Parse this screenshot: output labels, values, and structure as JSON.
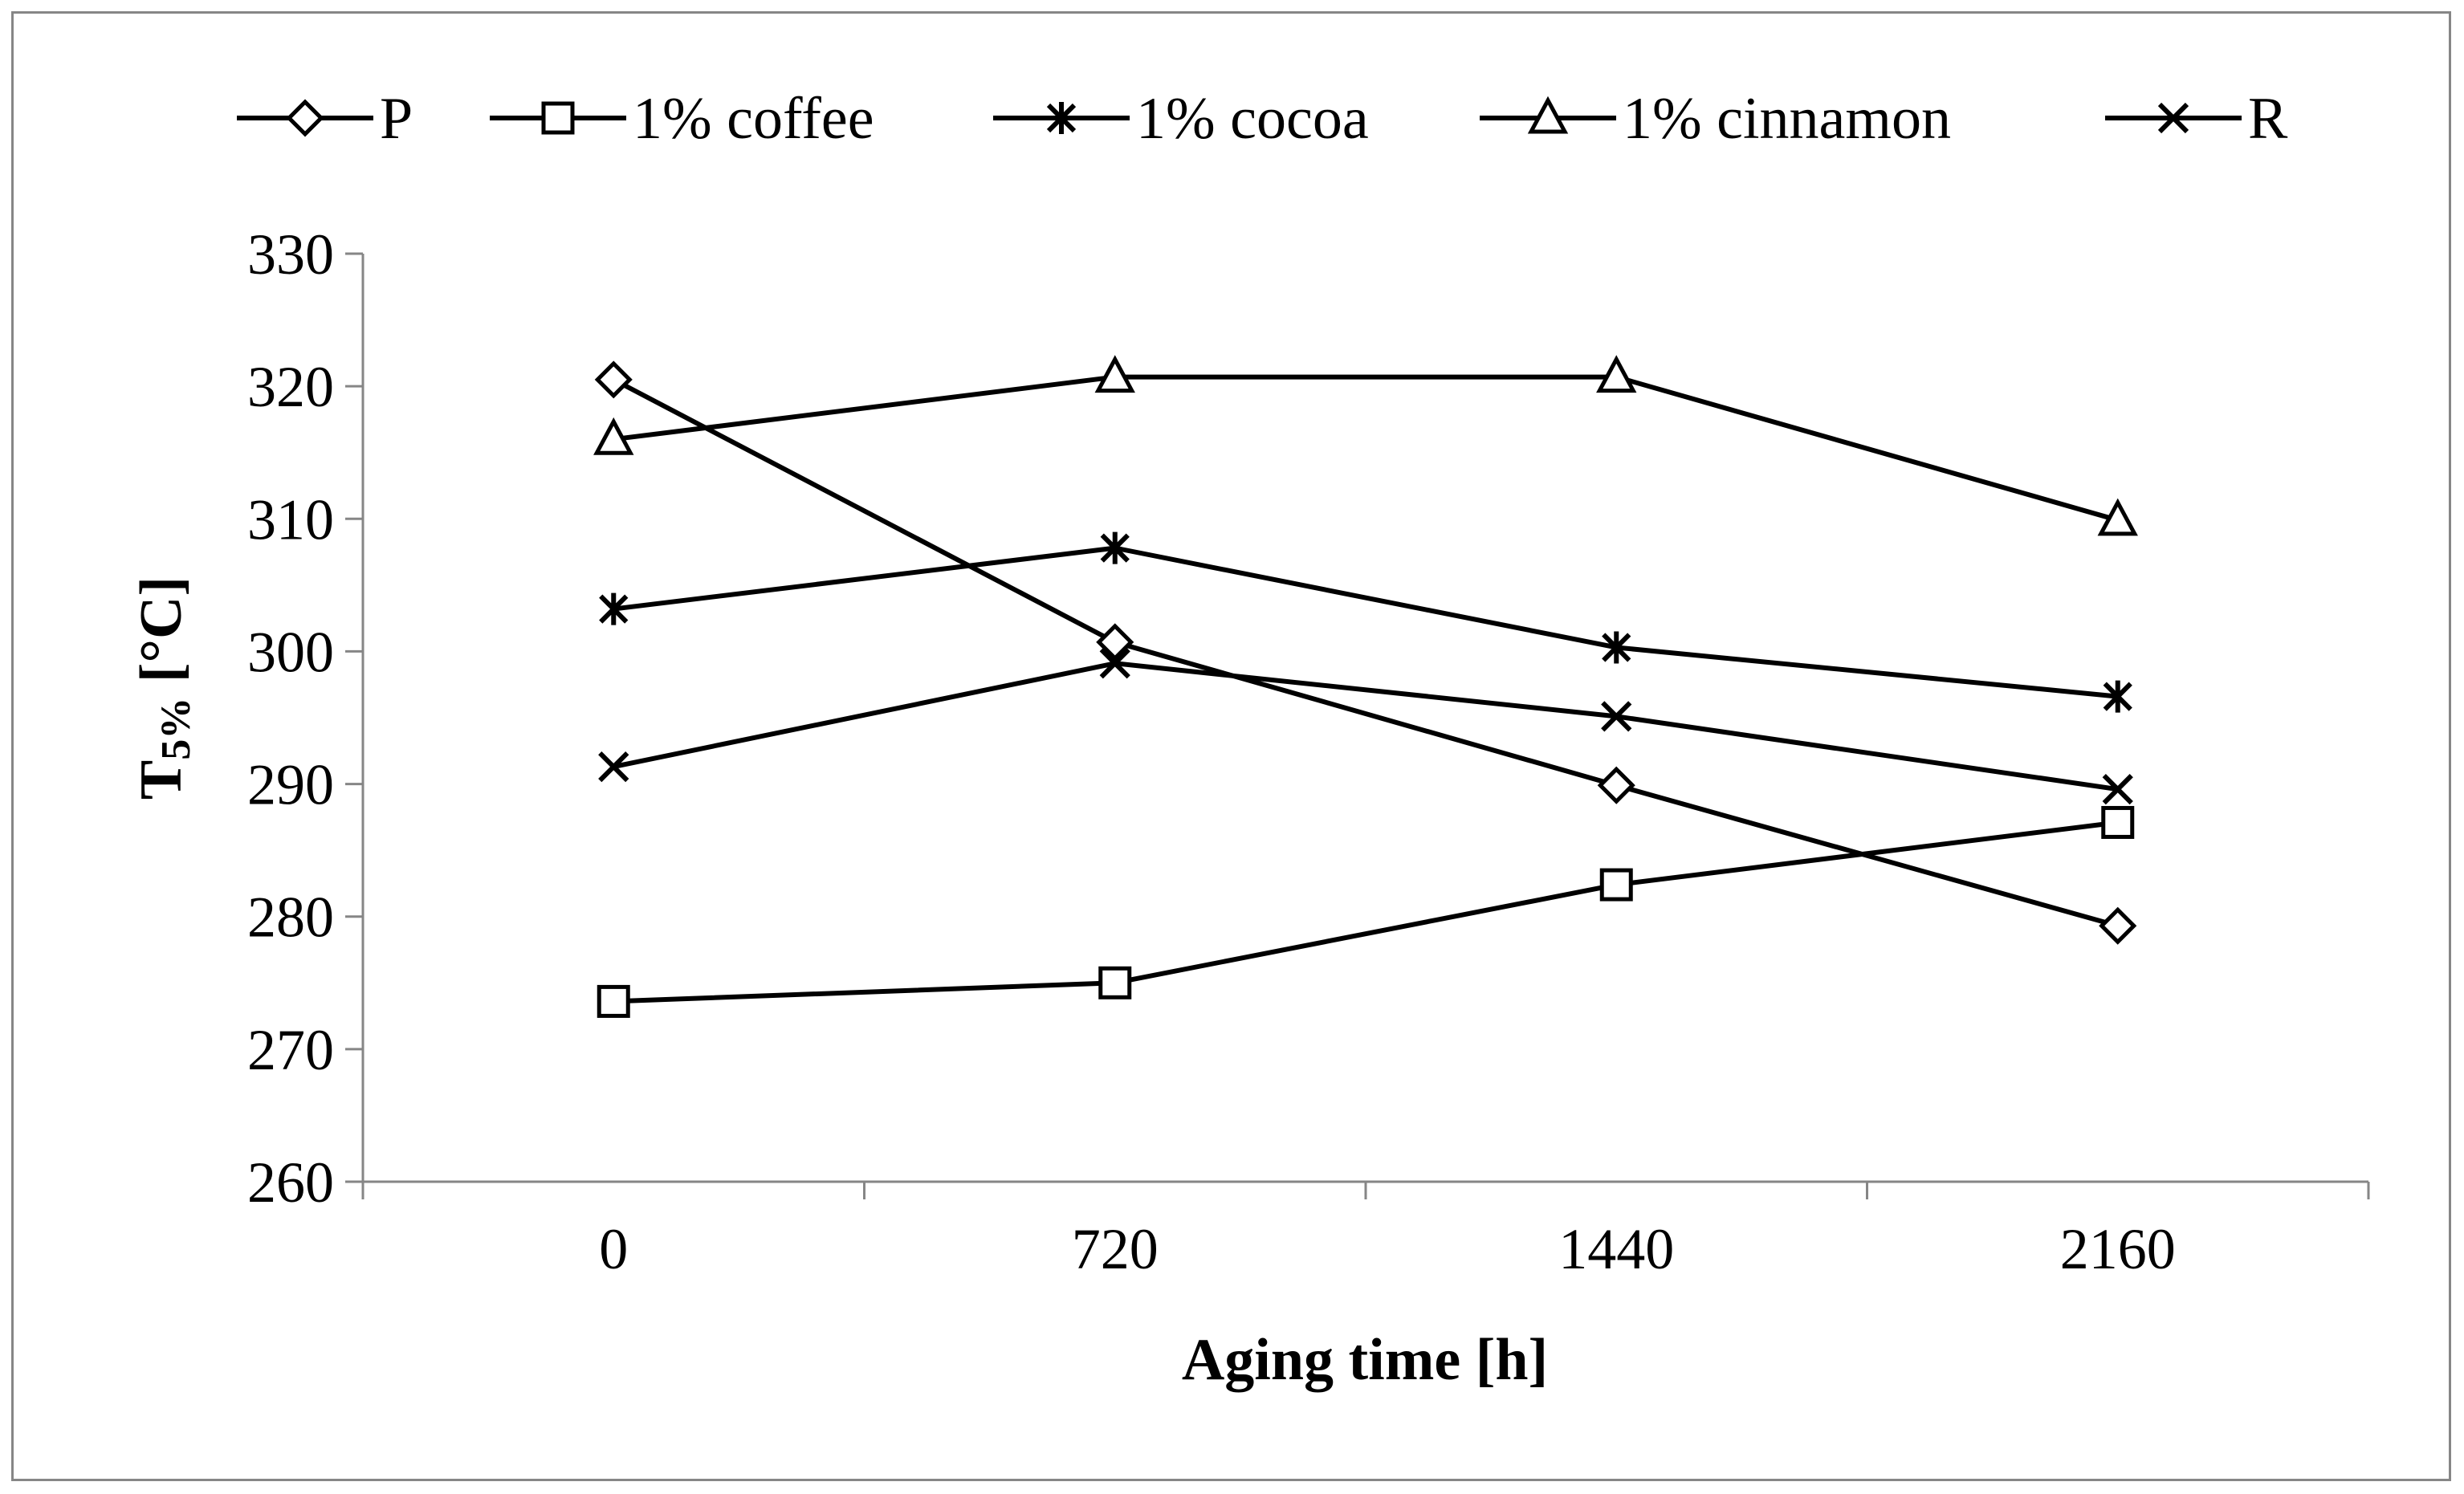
{
  "chart_data": {
    "type": "line",
    "title": "",
    "xlabel": "Aging time [h]",
    "ylabel_main": "T",
    "ylabel_sub": "5%",
    "ylabel_unit": " [°C]",
    "categories": [
      "0",
      "720",
      "1440",
      "2160"
    ],
    "ylim": [
      260,
      330
    ],
    "yticks": [
      "260",
      "270",
      "280",
      "290",
      "300",
      "310",
      "320",
      "330"
    ],
    "grid": false,
    "legend_position": "top",
    "line_color": "#000000",
    "axis_color": "#868686",
    "series": [
      {
        "name": "P",
        "marker": "diamond",
        "values": [
          320.5,
          300.7,
          289.9,
          279.3
        ]
      },
      {
        "name": "1% coffee",
        "marker": "square",
        "values": [
          273.6,
          275.0,
          282.4,
          287.1
        ]
      },
      {
        "name": "1% cocoa",
        "marker": "asterisk",
        "values": [
          303.2,
          307.8,
          300.3,
          296.6
        ]
      },
      {
        "name": "1% cinnamon",
        "marker": "triangle",
        "values": [
          316.0,
          320.7,
          320.7,
          309.9
        ]
      },
      {
        "name": "R",
        "marker": "x",
        "values": [
          291.3,
          299.1,
          295.1,
          289.6
        ]
      }
    ]
  }
}
